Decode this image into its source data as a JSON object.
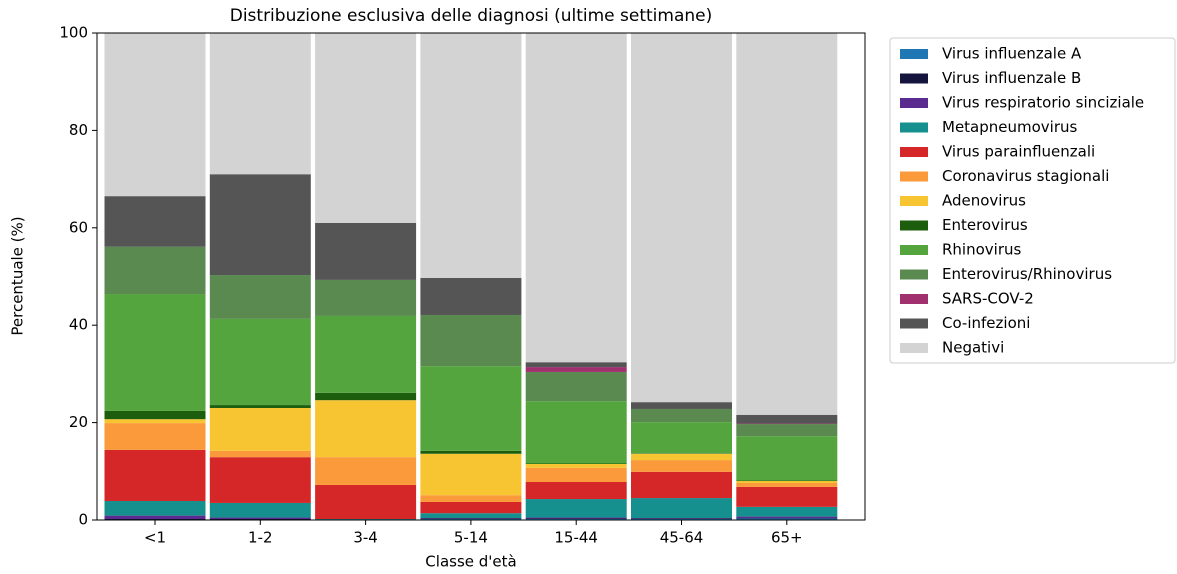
{
  "chart_data": {
    "type": "stacked_bar",
    "title": "Distribuzione esclusiva delle diagnosi (ultime settimane)",
    "x_label": "Classe d'età",
    "y_label": "Percentuale (%)",
    "categories": [
      "<1",
      "1-2",
      "3-4",
      "5-14",
      "15-44",
      "45-64",
      "65+"
    ],
    "ylim": [
      0,
      100
    ],
    "yticks": [
      0,
      20,
      40,
      60,
      80,
      100
    ],
    "legend": "outside right",
    "series": [
      {
        "name": "Virus influenzale A",
        "color": "#1f77b4",
        "values": [
          0.1,
          0.1,
          0,
          0.2,
          0.2,
          0.2,
          0.3
        ]
      },
      {
        "name": "Virus influenzale B",
        "color": "#14143c",
        "values": [
          0.1,
          0.1,
          0,
          0.1,
          0.1,
          0.1,
          0.1
        ]
      },
      {
        "name": "Virus respiratorio sinciziale",
        "color": "#5b2c8f",
        "values": [
          0.7,
          0.3,
          0.1,
          0.1,
          0.2,
          0.1,
          0.3
        ]
      },
      {
        "name": "Metapneumovirus",
        "color": "#168f8f",
        "values": [
          3.0,
          3.0,
          0.1,
          1.0,
          3.8,
          4.1,
          2.0
        ]
      },
      {
        "name": "Virus parainfluenzali",
        "color": "#d62728",
        "values": [
          10.5,
          9.4,
          7.0,
          2.3,
          3.5,
          5.4,
          4.1
        ]
      },
      {
        "name": "Coronavirus stagionali",
        "color": "#fb9a3a",
        "values": [
          5.5,
          1.3,
          5.7,
          1.4,
          2.9,
          2.4,
          0.8
        ]
      },
      {
        "name": "Adenovirus",
        "color": "#f7c531",
        "values": [
          0.8,
          8.8,
          11.7,
          8.5,
          0.8,
          1.3,
          0.4
        ]
      },
      {
        "name": "Enterovirus",
        "color": "#1d5e0e",
        "values": [
          1.7,
          0.6,
          1.5,
          0.6,
          0.1,
          0.1,
          0.1
        ]
      },
      {
        "name": "Rhinovirus",
        "color": "#55a53f",
        "values": [
          24.0,
          17.7,
          15.8,
          17.4,
          12.8,
          6.4,
          9.1
        ]
      },
      {
        "name": "Enterovirus/Rhinovirus",
        "color": "#5a8a50",
        "values": [
          9.7,
          9.0,
          7.4,
          10.5,
          6.0,
          2.7,
          2.5
        ]
      },
      {
        "name": "SARS-COV-2",
        "color": "#a0306e",
        "values": [
          0,
          0,
          0,
          0,
          1.0,
          0,
          0.1
        ]
      },
      {
        "name": "Co-infezioni",
        "color": "#555555",
        "values": [
          10.4,
          20.7,
          11.7,
          7.6,
          1.0,
          1.4,
          1.8
        ]
      },
      {
        "name": "Negativi",
        "color": "#d3d3d3",
        "values": [
          33.5,
          29.0,
          39.0,
          50.3,
          67.6,
          75.8,
          78.4
        ]
      }
    ]
  }
}
